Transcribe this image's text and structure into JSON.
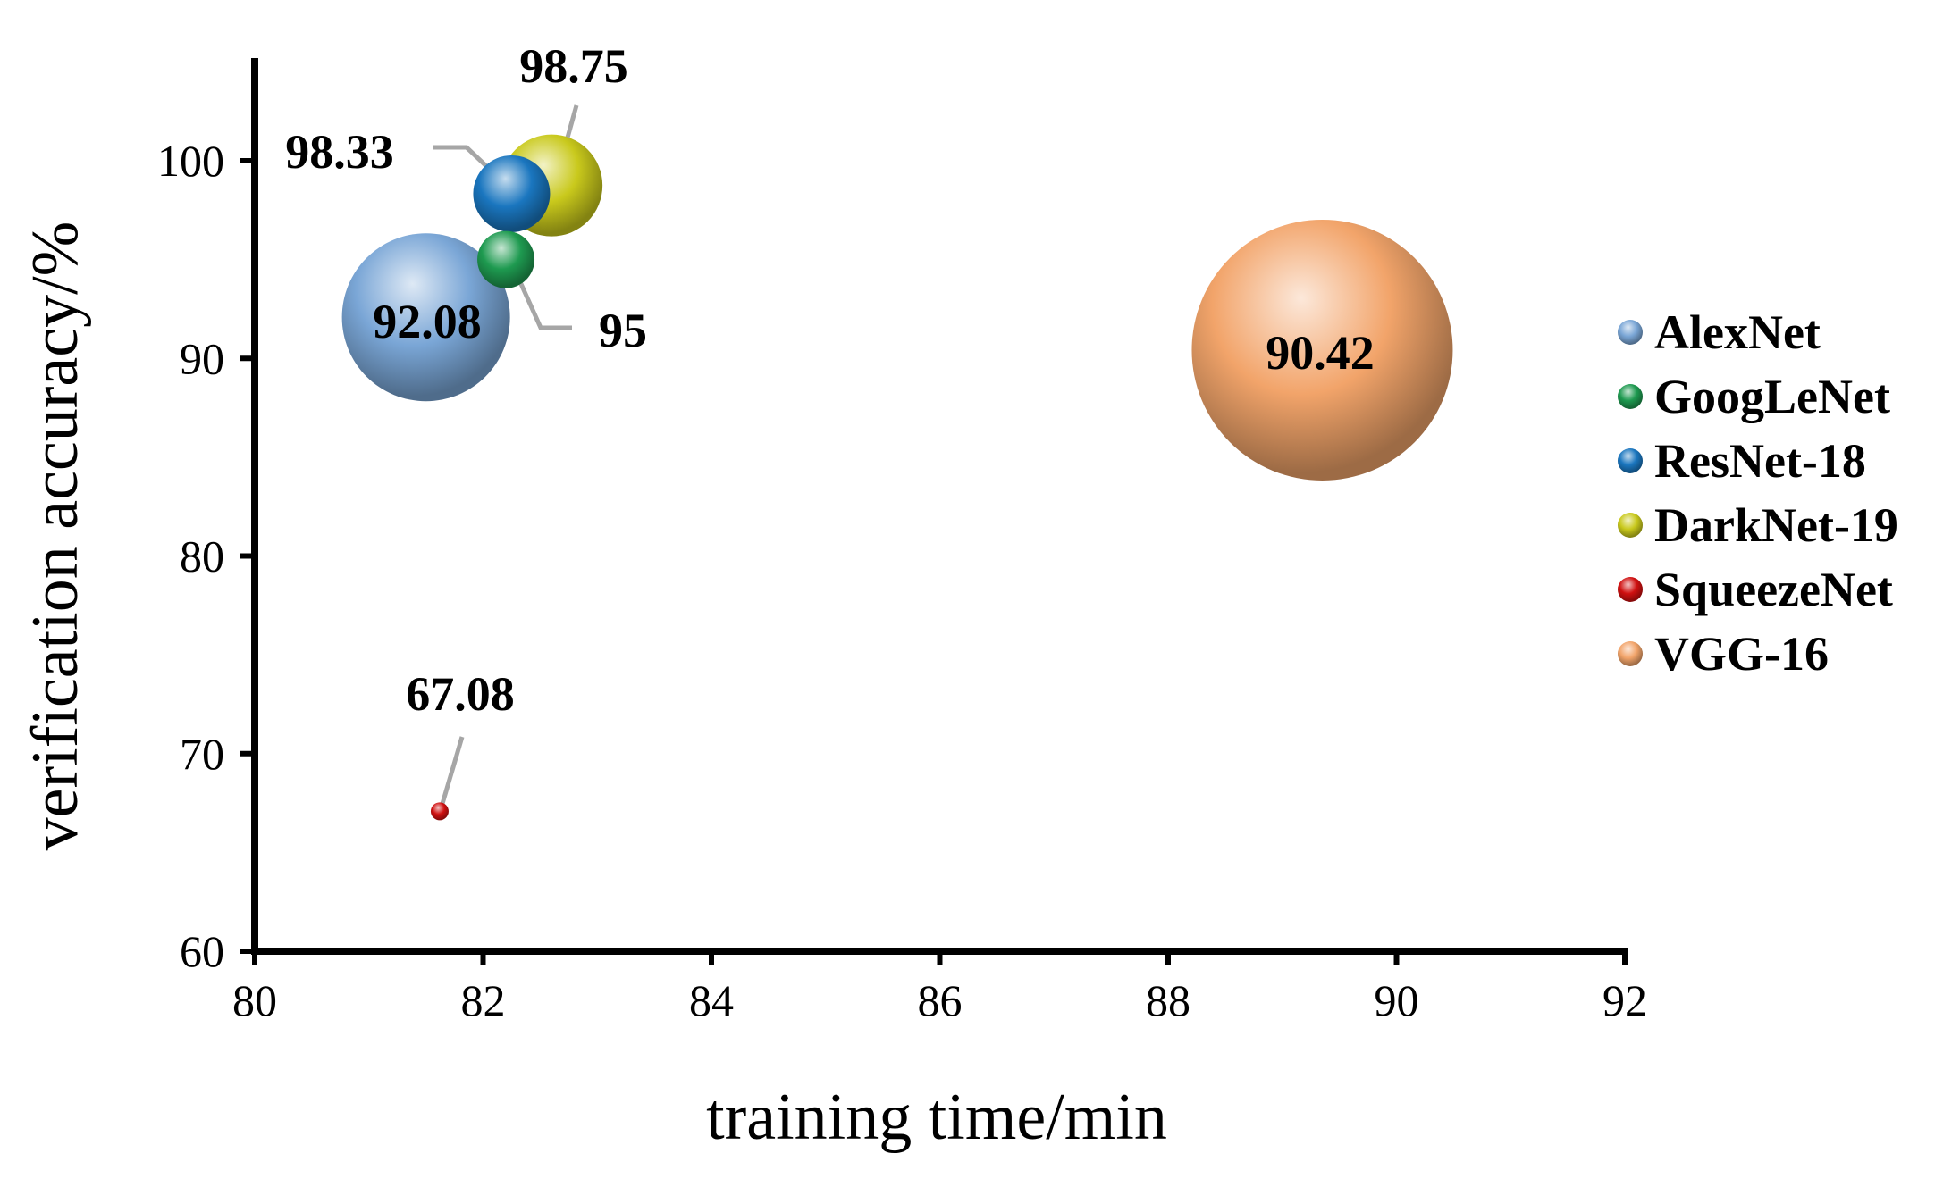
{
  "chart_data": {
    "type": "bubble",
    "title": "",
    "xlabel": "training time/min",
    "ylabel": "verification accuracy/%",
    "xlim": [
      80,
      92
    ],
    "ylim": [
      60,
      105
    ],
    "xticks": [
      80,
      82,
      84,
      86,
      88,
      90,
      92
    ],
    "yticks": [
      60,
      70,
      80,
      90,
      100
    ],
    "grid": false,
    "legend_position": "right",
    "series": [
      {
        "name": "AlexNet",
        "x": 81.5,
        "y": 92.08,
        "label": "92.08",
        "color": "#7aa6d6"
      },
      {
        "name": "GoogLeNet",
        "x": 82.2,
        "y": 95,
        "label": "95",
        "color": "#1e9a50"
      },
      {
        "name": "ResNet-18",
        "x": 82.25,
        "y": 98.33,
        "label": "98.33",
        "color": "#1a76bf"
      },
      {
        "name": "DarkNet-19",
        "x": 82.6,
        "y": 98.75,
        "label": "98.75",
        "color": "#c9c91c"
      },
      {
        "name": "SqueezeNet",
        "x": 81.62,
        "y": 67.08,
        "label": "67.08",
        "color": "#d01010"
      },
      {
        "name": "VGG-16",
        "x": 89.35,
        "y": 90.42,
        "label": "90.42",
        "color": "#f2a46a"
      }
    ]
  }
}
